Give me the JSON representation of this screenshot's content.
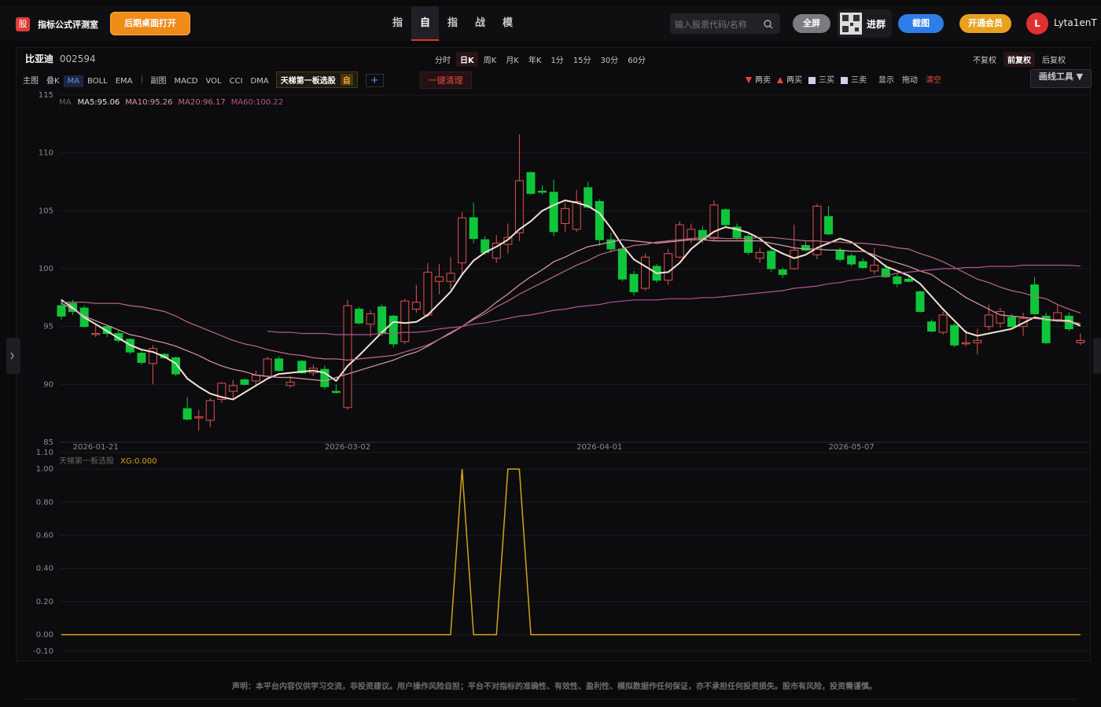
{
  "nav": {
    "logo": "股",
    "site": "指标公式评测室",
    "open_btn": "后期桌面打开",
    "menu": [
      "指标测评",
      "自选股",
      "指标广场",
      "战法广场",
      "模拟策略"
    ],
    "menu_active": 1,
    "search": "输入股票代码/名称",
    "fullscreen": "全屏",
    "group": "进群",
    "screenshot": "截图",
    "vip": "开通会员",
    "avatar": "L",
    "user": "Lyta1enT"
  },
  "stock": {
    "name": "比亚迪",
    "code": "002594",
    "periods": [
      "分时",
      "日K",
      "周K",
      "月K",
      "年K",
      "1分",
      "15分",
      "30分",
      "60分"
    ],
    "period_active": 1,
    "adjust": [
      "不复权",
      "前复权",
      "后复权"
    ],
    "adjust_active": 1
  },
  "toolbar": {
    "main": "主图",
    "main_items": [
      "叠K",
      "MA",
      "BOLL",
      "EMA"
    ],
    "main_active": 1,
    "sub": "副图",
    "sub_items": [
      "MACD",
      "VOL",
      "CCI",
      "DMA"
    ],
    "tag": "天梯第一板选股",
    "tag_badge": "自",
    "add": "+",
    "clear": "一键清理",
    "signals": [
      {
        "label": "两卖",
        "color": "#e8453c",
        "shape": "down"
      },
      {
        "label": "两买",
        "color": "#e8453c",
        "shape": "up"
      },
      {
        "label": "三买",
        "color": "#c9d4e8",
        "shape": "square"
      },
      {
        "label": "三卖",
        "color": "#c9d4e8",
        "shape": "square"
      }
    ],
    "show": "显示",
    "drag": "拖动",
    "empty": "清空",
    "draw_tools": "画线工具 ▼"
  },
  "footer": {
    "disclaimer": "声明：本平台内容仅供学习交流，非投资建议。用户操作风险自担；平台不对指标的准确性、有效性、盈利性、模拟数据作任何保证，亦不承担任何投资损失。股市有风险，投资需谨慎。"
  },
  "chart_data": [
    {
      "type": "candlestick",
      "legend_title": "MA",
      "up_color": "#e0524f",
      "down_color": "#0fc63b",
      "grid": true,
      "ylim": [
        85,
        115
      ],
      "yticks": [
        85,
        90,
        95,
        100,
        105,
        110,
        115
      ],
      "categories": [
        null,
        null,
        null,
        "2026-01-21",
        null,
        null,
        null,
        null,
        null,
        null,
        null,
        null,
        null,
        null,
        null,
        null,
        null,
        null,
        null,
        null,
        null,
        null,
        null,
        null,
        null,
        "2026-03-02",
        null,
        null,
        null,
        null,
        null,
        null,
        null,
        null,
        null,
        null,
        null,
        null,
        null,
        null,
        null,
        null,
        null,
        null,
        null,
        null,
        null,
        "2026-04-01",
        null,
        null,
        null,
        null,
        null,
        null,
        null,
        null,
        null,
        null,
        null,
        null,
        null,
        null,
        null,
        null,
        null,
        null,
        null,
        null,
        null,
        "2026-05-07",
        null,
        null,
        null,
        null,
        null,
        null,
        null,
        null,
        null,
        null,
        null,
        null,
        null,
        null,
        null,
        null,
        null,
        null,
        null,
        null
      ],
      "open": [
        96.8,
        97.0,
        96.6,
        94.3,
        95.0,
        94.4,
        93.9,
        92.7,
        91.8,
        92.6,
        92.3,
        87.9,
        87.1,
        86.9,
        88.7,
        89.4,
        90.4,
        90.3,
        90.7,
        92.2,
        89.9,
        92.0,
        91.0,
        91.3,
        89.4,
        88.0,
        96.5,
        95.2,
        96.7,
        95.9,
        93.7,
        96.5,
        96.0,
        98.9,
        98.9,
        100.5,
        104.4,
        102.5,
        100.9,
        102.1,
        103.1,
        108.3,
        106.7,
        106.6,
        103.9,
        103.4,
        107.0,
        105.8,
        102.5,
        101.7,
        99.5,
        98.3,
        100.2,
        99.0,
        101.0,
        102.5,
        103.3,
        102.6,
        105.1,
        103.6,
        102.8,
        100.9,
        101.5,
        99.9,
        100.0,
        102.0,
        101.2,
        104.5,
        101.6,
        101.1,
        100.6,
        99.8,
        100.0,
        99.3,
        99.1,
        98.0,
        95.4,
        94.5,
        95.1,
        93.5,
        93.6,
        95.0,
        95.3,
        95.8,
        95.0,
        98.6,
        95.9,
        95.6,
        95.9,
        93.6
      ],
      "high": [
        97.4,
        97.3,
        96.8,
        95.3,
        95.1,
        94.7,
        94.0,
        93.0,
        93.4,
        92.7,
        92.4,
        88.9,
        87.8,
        88.8,
        90.2,
        90.4,
        90.5,
        91.2,
        92.4,
        92.4,
        90.7,
        92.1,
        91.7,
        91.6,
        90.0,
        97.3,
        96.7,
        96.4,
        96.9,
        96.0,
        97.4,
        98.6,
        100.5,
        100.4,
        101.0,
        104.9,
        105.7,
        102.8,
        102.9,
        103.9,
        111.6,
        108.4,
        107.2,
        107.7,
        105.7,
        106.8,
        107.5,
        106.0,
        103.1,
        102.0,
        99.8,
        101.3,
        100.4,
        101.7,
        104.1,
        103.9,
        103.7,
        105.9,
        105.2,
        103.9,
        103.0,
        101.8,
        101.7,
        100.1,
        103.8,
        102.4,
        105.6,
        105.4,
        101.8,
        101.3,
        100.9,
        101.8,
        100.4,
        99.6,
        99.3,
        98.1,
        95.6,
        96.3,
        95.3,
        94.7,
        94.8,
        96.9,
        96.6,
        96.1,
        96.2,
        99.3,
        96.2,
        96.8,
        96.2,
        94.4
      ],
      "low": [
        95.6,
        96.0,
        94.9,
        94.1,
        94.1,
        93.6,
        92.6,
        91.7,
        90.0,
        92.2,
        90.7,
        86.9,
        86.0,
        86.3,
        88.4,
        88.7,
        89.9,
        89.8,
        90.5,
        91.1,
        89.7,
        90.9,
        90.7,
        89.6,
        89.2,
        87.8,
        95.2,
        94.1,
        94.2,
        93.2,
        93.5,
        96.2,
        95.8,
        97.8,
        98.2,
        99.5,
        102.2,
        101.2,
        100.5,
        101.3,
        102.4,
        106.4,
        106.4,
        102.8,
        103.2,
        103.2,
        105.2,
        102.0,
        101.4,
        98.9,
        97.7,
        98.1,
        98.8,
        98.6,
        100.9,
        102.2,
        102.2,
        102.4,
        103.5,
        102.5,
        101.2,
        100.5,
        99.7,
        99.2,
        99.9,
        101.5,
        100.8,
        102.9,
        100.6,
        100.2,
        100.0,
        99.5,
        99.2,
        98.4,
        98.8,
        96.2,
        94.5,
        94.3,
        93.2,
        93.3,
        92.6,
        94.7,
        94.9,
        94.9,
        94.2,
        96.0,
        93.5,
        95.4,
        94.6,
        93.4
      ],
      "close": [
        95.9,
        96.3,
        95.0,
        94.4,
        94.4,
        93.8,
        92.8,
        91.9,
        93.1,
        92.3,
        90.9,
        87.0,
        87.2,
        88.6,
        90.1,
        89.9,
        90.0,
        90.8,
        92.2,
        91.2,
        90.2,
        91.0,
        91.4,
        89.8,
        89.3,
        96.8,
        95.3,
        96.1,
        94.4,
        93.5,
        97.2,
        97.1,
        99.7,
        99.3,
        99.6,
        104.4,
        102.6,
        101.4,
        102.2,
        102.7,
        107.6,
        106.5,
        106.6,
        103.2,
        105.2,
        105.8,
        105.3,
        102.5,
        101.7,
        99.1,
        98.0,
        101.0,
        99.0,
        101.3,
        103.8,
        103.4,
        102.5,
        105.5,
        103.8,
        102.7,
        101.4,
        101.4,
        100.0,
        99.5,
        101.6,
        101.6,
        105.4,
        103.0,
        100.8,
        100.4,
        100.1,
        100.3,
        99.3,
        98.7,
        98.9,
        96.3,
        94.6,
        96.0,
        93.4,
        93.6,
        93.8,
        96.0,
        96.3,
        95.0,
        95.7,
        96.1,
        93.6,
        96.2,
        94.8,
        93.8
      ],
      "series": [
        {
          "label": "MA5:95.06",
          "color": "#f3e2d3",
          "values": [
            97.3,
            96.6,
            95.8,
            95.2,
            94.6,
            94.0,
            93.4,
            93.0,
            92.8,
            92.4,
            91.8,
            90.5,
            89.8,
            89.2,
            88.9,
            88.7,
            89.3,
            89.9,
            90.5,
            90.9,
            91.0,
            91.1,
            91.2,
            91.0,
            90.3,
            91.6,
            92.5,
            93.5,
            94.5,
            95.4,
            95.3,
            95.4,
            96.0,
            97.0,
            98.0,
            99.5,
            100.7,
            101.4,
            101.9,
            102.5,
            103.4,
            104.1,
            105.0,
            105.5,
            105.9,
            105.7,
            105.4,
            104.8,
            103.5,
            102.0,
            100.8,
            100.2,
            99.6,
            99.7,
            100.5,
            101.7,
            102.5,
            103.2,
            103.6,
            103.4,
            103.1,
            102.6,
            101.8,
            101.3,
            100.9,
            101.2,
            101.8,
            102.2,
            102.6,
            102.3,
            101.6,
            101.0,
            100.2,
            99.8,
            99.4,
            98.7,
            97.6,
            96.5,
            95.5,
            94.5,
            94.2,
            94.4,
            94.6,
            94.8,
            95.3,
            95.8,
            95.6,
            95.5,
            95.5,
            95.06
          ]
        },
        {
          "label": "MA10:95.26",
          "color": "#d99aa6",
          "values": [
            97.0,
            96.5,
            95.9,
            95.5,
            95.1,
            94.7,
            94.3,
            94.1,
            93.8,
            93.6,
            93.3,
            92.9,
            92.5,
            92.0,
            91.6,
            91.3,
            91.1,
            90.8,
            90.7,
            90.6,
            90.6,
            90.5,
            90.4,
            90.3,
            90.6,
            90.9,
            91.2,
            91.5,
            91.8,
            92.1,
            92.5,
            92.8,
            93.3,
            93.9,
            94.4,
            95.0,
            95.7,
            96.3,
            97.1,
            97.8,
            98.6,
            99.3,
            99.9,
            100.6,
            101.0,
            101.5,
            101.9,
            102.1,
            102.3,
            102.5,
            102.4,
            102.3,
            102.2,
            102.3,
            102.4,
            102.5,
            102.5,
            102.4,
            102.4,
            102.4,
            102.4,
            102.4,
            102.2,
            102.0,
            101.8,
            101.7,
            101.7,
            101.6,
            101.6,
            101.5,
            101.5,
            101.2,
            100.8,
            100.5,
            100.2,
            99.8,
            99.5,
            98.8,
            98.2,
            97.5,
            97.0,
            96.5,
            96.0,
            95.9,
            95.8,
            95.7,
            95.6,
            95.5,
            95.4,
            95.26
          ]
        },
        {
          "label": "MA20:96.17",
          "color": "#c06a82",
          "values": [
            97.1,
            97.1,
            97.1,
            97.0,
            97.0,
            97.0,
            96.8,
            96.7,
            96.5,
            96.3,
            95.9,
            95.4,
            95.0,
            94.6,
            94.2,
            93.8,
            93.5,
            93.3,
            93.0,
            92.8,
            92.6,
            92.5,
            92.3,
            92.2,
            92.2,
            92.1,
            92.2,
            92.3,
            92.4,
            92.5,
            92.8,
            93.1,
            93.4,
            93.9,
            94.5,
            95.0,
            95.6,
            96.1,
            96.7,
            97.2,
            97.8,
            98.3,
            98.8,
            99.3,
            99.8,
            100.3,
            100.7,
            101.2,
            101.5,
            101.7,
            102.0,
            102.1,
            102.3,
            102.4,
            102.5,
            102.6,
            102.7,
            102.7,
            102.6,
            102.6,
            102.6,
            102.7,
            102.7,
            102.6,
            102.5,
            102.4,
            102.4,
            102.3,
            102.3,
            102.2,
            102.2,
            102.1,
            102.0,
            101.8,
            101.7,
            101.3,
            101.0,
            100.6,
            100.1,
            99.6,
            99.1,
            98.8,
            98.4,
            98.1,
            97.9,
            97.6,
            97.4,
            96.9,
            96.5,
            96.17
          ]
        },
        {
          "label": "MA60:100.22",
          "color": "#b45294",
          "values": [
            null,
            null,
            null,
            null,
            null,
            null,
            null,
            null,
            null,
            null,
            null,
            null,
            null,
            null,
            null,
            null,
            null,
            null,
            94.6,
            94.5,
            94.5,
            94.4,
            94.4,
            94.4,
            94.3,
            94.3,
            94.3,
            94.3,
            94.4,
            94.4,
            94.5,
            94.5,
            94.6,
            94.8,
            94.9,
            95.0,
            95.2,
            95.3,
            95.5,
            95.7,
            95.9,
            96.0,
            96.2,
            96.4,
            96.5,
            96.7,
            96.8,
            96.9,
            97.1,
            97.2,
            97.3,
            97.3,
            97.3,
            97.4,
            97.4,
            97.4,
            97.5,
            97.5,
            97.6,
            97.7,
            97.8,
            97.9,
            98.0,
            98.1,
            98.3,
            98.4,
            98.5,
            98.7,
            98.8,
            99.0,
            99.1,
            99.3,
            99.4,
            99.6,
            99.7,
            99.8,
            99.9,
            100.0,
            100.0,
            100.1,
            100.1,
            100.2,
            100.2,
            100.2,
            100.3,
            100.3,
            100.3,
            100.3,
            100.3,
            100.22
          ]
        }
      ]
    },
    {
      "type": "line",
      "legend_title": "天梯第一板选股",
      "grid": true,
      "ylim": [
        -0.1,
        1.1
      ],
      "yticks": [
        {
          "value": -0.1,
          "label": "-0.10"
        },
        {
          "value": 0,
          "label": "0.00"
        },
        {
          "value": 0.2,
          "label": "0.20"
        },
        {
          "value": 0.4,
          "label": "0.40"
        },
        {
          "value": 0.6,
          "label": "0.60"
        },
        {
          "value": 0.8,
          "label": "0.80"
        },
        {
          "value": 1,
          "label": "1.00"
        },
        {
          "value": 1.1,
          "label": "1.10"
        }
      ],
      "series": [
        {
          "label": "XG:0.000",
          "color": "#d4a21a",
          "values": [
            0,
            0,
            0,
            0,
            0,
            0,
            0,
            0,
            0,
            0,
            0,
            0,
            0,
            0,
            0,
            0,
            0,
            0,
            0,
            0,
            0,
            0,
            0,
            0,
            0,
            0,
            0,
            0,
            0,
            0,
            0,
            0,
            0,
            0,
            0,
            1,
            0,
            0,
            0,
            1,
            1,
            0,
            0,
            0,
            0,
            0,
            0,
            0,
            0,
            0,
            0,
            0,
            0,
            0,
            0,
            0,
            0,
            0,
            0,
            0,
            0,
            0,
            0,
            0,
            0,
            0,
            0,
            0,
            0,
            0,
            0,
            0,
            0,
            0,
            0,
            0,
            0,
            0,
            0,
            0,
            0,
            0,
            0,
            0,
            0,
            0,
            0,
            0,
            0,
            0
          ]
        }
      ]
    }
  ]
}
